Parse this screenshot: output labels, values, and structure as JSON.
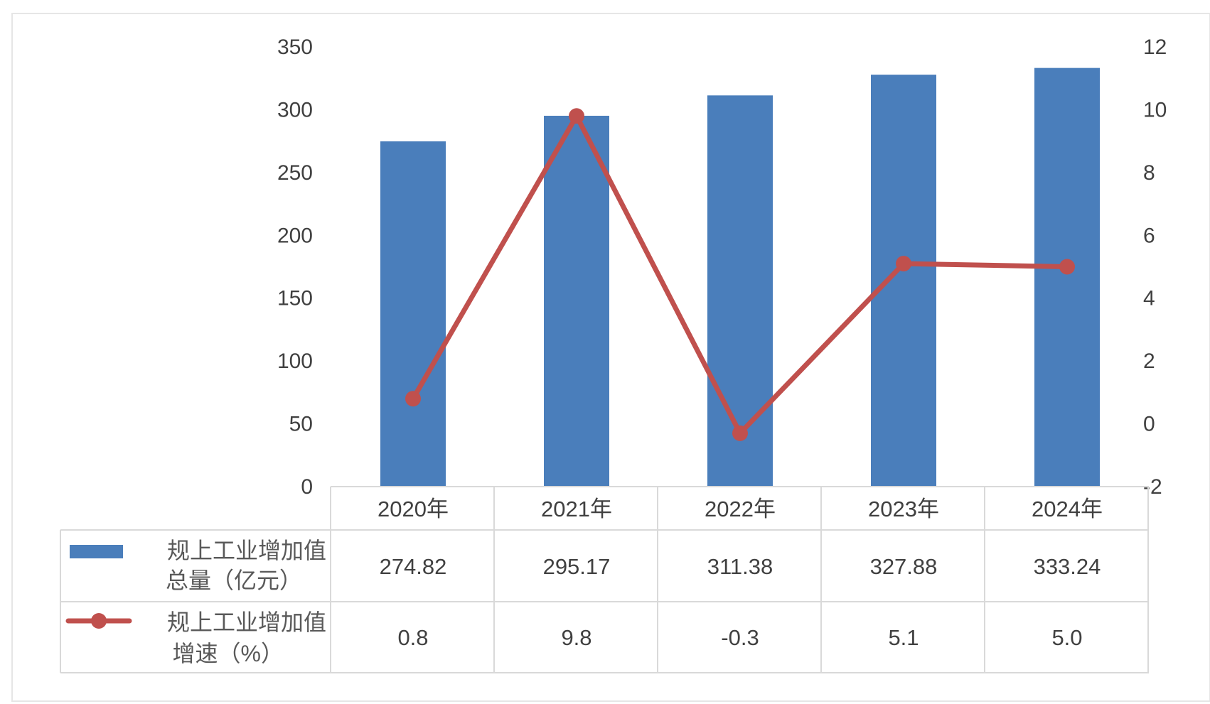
{
  "colors": {
    "bar": "#4a7ebb",
    "line": "#c0504d",
    "grid": "#d9d9d9",
    "text": "#404040"
  },
  "chart_data": {
    "type": "bar",
    "categories": [
      "2020年",
      "2021年",
      "2022年",
      "2023年",
      "2024年"
    ],
    "series": [
      {
        "name": "规上工业增加值总量（亿元）",
        "legend_lines": [
          "规上工业增加值",
          "总量（亿元）"
        ],
        "type": "bar",
        "axis": "left",
        "values": [
          274.82,
          295.17,
          311.38,
          327.88,
          333.24
        ],
        "labels": [
          "274.82",
          "295.17",
          "311.38",
          "327.88",
          "333.24"
        ]
      },
      {
        "name": "规上工业增加值增速（%）",
        "legend_lines": [
          "规上工业增加值",
          "增速（%）"
        ],
        "type": "line",
        "axis": "right",
        "values": [
          0.8,
          9.8,
          -0.3,
          5.1,
          5.0
        ],
        "labels": [
          "0.8",
          "9.8",
          "-0.3",
          "5.1",
          "5.0"
        ]
      }
    ],
    "y_left": {
      "ylim": [
        0,
        350
      ],
      "ticks": [
        "0",
        "50",
        "100",
        "150",
        "200",
        "250",
        "300",
        "350"
      ]
    },
    "y_right": {
      "ylim": [
        -2,
        12
      ],
      "ticks": [
        "-2",
        "0",
        "2",
        "4",
        "6",
        "8",
        "10",
        "12"
      ]
    },
    "grid": false,
    "legend": "data-table"
  }
}
